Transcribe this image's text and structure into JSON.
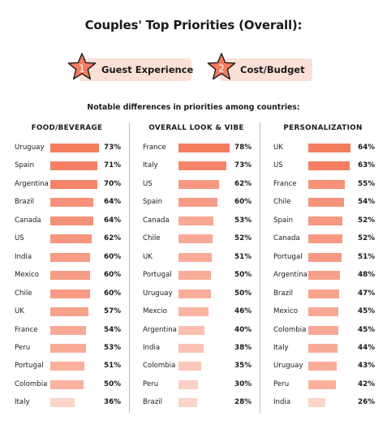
{
  "title": "Couples' Top Priorities (Overall):",
  "priorities": [
    {
      "rank": "1",
      "label": "Guest Experience"
    },
    {
      "rank": "2",
      "label": "Cost/Budget"
    }
  ],
  "subtitle": "Notable differences in priorities among countries:",
  "colors": {
    "bar_high": "#f47c5f",
    "bar_low": "#fcd4c8",
    "star": "#f47c5f",
    "pill": "#fbe0d8"
  },
  "chart_data": [
    {
      "type": "bar",
      "title": "FOOD/BEVERAGE",
      "unit": "%",
      "categories": [
        "Uruguay",
        "Spain",
        "Argentina",
        "Brazil",
        "Canada",
        "US",
        "India",
        "Mexico",
        "Chile",
        "UK",
        "France",
        "Peru",
        "Portugal",
        "Colombia",
        "Italy"
      ],
      "values": [
        73,
        71,
        70,
        64,
        64,
        62,
        60,
        60,
        60,
        57,
        54,
        53,
        51,
        50,
        36
      ],
      "labels": [
        "73%",
        "71%",
        "70%",
        "64%",
        "64%",
        "62%",
        "60%",
        "60%",
        "60%",
        "57%",
        "54%",
        "53%",
        "51%",
        "50%",
        "36%"
      ]
    },
    {
      "type": "bar",
      "title": "OVERALL LOOK & VIBE",
      "unit": "%",
      "categories": [
        "France",
        "Italy",
        "US",
        "Spain",
        "Canada",
        "Chile",
        "UK",
        "Portugal",
        "Uruguay",
        "Mexcio",
        "Argentina",
        "India",
        "Colombia",
        "Peru",
        "Brazil"
      ],
      "values": [
        78,
        73,
        62,
        60,
        53,
        52,
        51,
        50,
        50,
        46,
        40,
        38,
        35,
        30,
        28
      ],
      "labels": [
        "78%",
        "73%",
        "62%",
        "60%",
        "53%",
        "52%",
        "51%",
        "50%",
        "50%",
        "46%",
        "40%",
        "38%",
        "35%",
        "30%",
        "28%"
      ]
    },
    {
      "type": "bar",
      "title": "PERSONALIZATION",
      "unit": "%",
      "categories": [
        "UK",
        "US",
        "France",
        "Chile",
        "Spain",
        "Canada",
        "Portugal",
        "Argentina",
        "Brazil",
        "Mexico",
        "Colombia",
        "Italy",
        "Uruguay",
        "Peru",
        "India"
      ],
      "values": [
        64,
        63,
        55,
        54,
        52,
        52,
        51,
        48,
        47,
        45,
        45,
        44,
        43,
        42,
        26
      ],
      "labels": [
        "64%",
        "63%",
        "55%",
        "54%",
        "52%",
        "52%",
        "51%",
        "48%",
        "47%",
        "45%",
        "45%",
        "44%",
        "43%",
        "42%",
        "26%"
      ]
    }
  ]
}
